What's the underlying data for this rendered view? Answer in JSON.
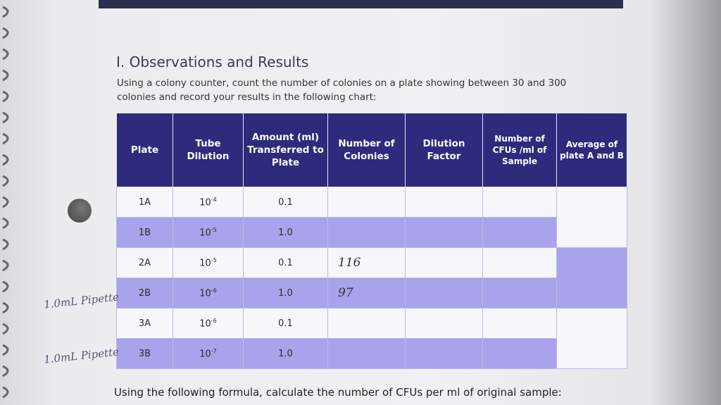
{
  "header": {
    "title": "I. Observations and Results",
    "instructions": "Using a colony counter, count the number of colonies on a plate showing between 30 and 300 colonies and record your results in the following chart:"
  },
  "table": {
    "columns": [
      "Plate",
      "Tube Dilution",
      "Amount (ml) Transferred to Plate",
      "Number of Colonies",
      "Dilution Factor",
      "Number of CFUs /ml of Sample",
      "Average of plate A and B"
    ],
    "rows": [
      {
        "plate": "1A",
        "dilution_base": "10",
        "dilution_exponent": "-4",
        "amount": "0.1"
      },
      {
        "plate": "1B",
        "dilution_base": "10",
        "dilution_exponent": "-5",
        "amount": "1.0"
      },
      {
        "plate": "2A",
        "dilution_base": "10",
        "dilution_exponent": "-5",
        "amount": "0.1",
        "colonies": "116"
      },
      {
        "plate": "2B",
        "dilution_base": "10",
        "dilution_exponent": "-6",
        "amount": "1.0",
        "colonies": "97"
      },
      {
        "plate": "3A",
        "dilution_base": "10",
        "dilution_exponent": "-6",
        "amount": "0.1"
      },
      {
        "plate": "3B",
        "dilution_base": "10",
        "dilution_exponent": "-7",
        "amount": "1.0"
      }
    ]
  },
  "margin_notes": [
    "1.0mL Pipette",
    "1.0mL Pipette"
  ],
  "footer": "Using the following formula, calculate the number of CFUs per ml of original sample:"
}
